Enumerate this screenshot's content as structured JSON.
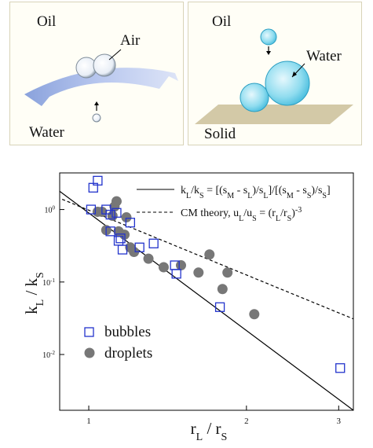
{
  "panels": {
    "left": {
      "top_label": "Oil",
      "gas_label": "Air",
      "bottom_label": "Water"
    },
    "right": {
      "top_label": "Oil",
      "drop_label": "Water",
      "bottom_label": "Solid"
    }
  },
  "chart_data": {
    "type": "scatter",
    "xlabel": "r_L / r_S",
    "ylabel": "k_L / k_S",
    "xscale": "log",
    "yscale": "log",
    "xlim": [
      0.88,
      3.2
    ],
    "ylim": [
      0.0017,
      3.2
    ],
    "x_ticks": [
      {
        "value": 1,
        "label": "1"
      },
      {
        "value": 2,
        "label": "2"
      },
      {
        "value": 3,
        "label": "3"
      }
    ],
    "y_ticks": [
      {
        "value": 1,
        "label": "10^0"
      },
      {
        "value": 0.1,
        "label": "10^-1"
      },
      {
        "value": 0.01,
        "label": "10^-2"
      }
    ],
    "legend_top": {
      "position": "top-right",
      "entries": [
        {
          "style": "solid",
          "label": "k_L/k_S = [(s_M - s_L)/s_L]/[(s_M - s_S)/s_S]"
        },
        {
          "style": "dashed",
          "label": "CM theory, u_L/u_S = (r_L/r_S)^-3"
        }
      ]
    },
    "legend_bottom": {
      "position": "bottom-left",
      "entries": [
        {
          "marker": "open-square",
          "label": "bubbles"
        },
        {
          "marker": "filled-circle",
          "label": "droplets"
        }
      ]
    },
    "series": [
      {
        "name": "bubbles",
        "marker": "open-square",
        "color": "#2233cc",
        "points": [
          [
            1.02,
            2.0
          ],
          [
            1.04,
            2.5
          ],
          [
            1.01,
            1.0
          ],
          [
            1.08,
            1.0
          ],
          [
            1.1,
            0.85
          ],
          [
            1.1,
            0.5
          ],
          [
            1.13,
            0.9
          ],
          [
            1.14,
            0.37
          ],
          [
            1.15,
            0.4
          ],
          [
            1.16,
            0.28
          ],
          [
            1.2,
            0.66
          ],
          [
            1.25,
            0.3
          ],
          [
            1.33,
            0.34
          ],
          [
            1.46,
            0.17
          ],
          [
            1.47,
            0.13
          ],
          [
            1.78,
            0.045
          ],
          [
            3.02,
            0.0065
          ]
        ]
      },
      {
        "name": "droplets",
        "marker": "filled-circle",
        "color": "#777777",
        "points": [
          [
            1.04,
            0.93
          ],
          [
            1.06,
            0.93
          ],
          [
            1.08,
            0.52
          ],
          [
            1.11,
            0.82
          ],
          [
            1.12,
            1.1
          ],
          [
            1.13,
            1.3
          ],
          [
            1.14,
            0.5
          ],
          [
            1.17,
            0.45
          ],
          [
            1.18,
            0.78
          ],
          [
            1.2,
            0.3
          ],
          [
            1.22,
            0.26
          ],
          [
            1.3,
            0.21
          ],
          [
            1.39,
            0.16
          ],
          [
            1.5,
            0.17
          ],
          [
            1.62,
            0.135
          ],
          [
            1.7,
            0.24
          ],
          [
            1.8,
            0.08
          ],
          [
            1.84,
            0.135
          ],
          [
            2.07,
            0.036
          ]
        ]
      }
    ],
    "lines": [
      {
        "name": "solid fit",
        "style": "solid",
        "x": [
          0.87,
          3.2
        ],
        "y": [
          1.9,
          0.0017
        ]
      },
      {
        "name": "CM theory",
        "style": "dashed",
        "x": [
          0.87,
          3.2
        ],
        "y": [
          1.48,
          0.031
        ]
      }
    ]
  }
}
